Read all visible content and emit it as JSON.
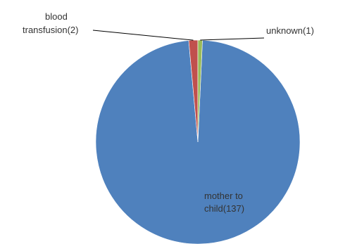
{
  "chart_data": {
    "type": "pie",
    "title": "",
    "slices": [
      {
        "name": "mother to child",
        "value": 137,
        "label_lines": [
          "mother to",
          "child(137)"
        ],
        "color": "#4F81BD"
      },
      {
        "name": "blood transfusion",
        "value": 2,
        "label_lines": [
          "blood",
          "transfusion(2)"
        ],
        "color": "#C0504D"
      },
      {
        "name": "unknown",
        "value": 1,
        "label_lines": [
          "unknown(1)"
        ],
        "color": "#9BBB59"
      }
    ],
    "legend": "none",
    "labels": "outside-with-leader-lines-for-small-slices"
  }
}
